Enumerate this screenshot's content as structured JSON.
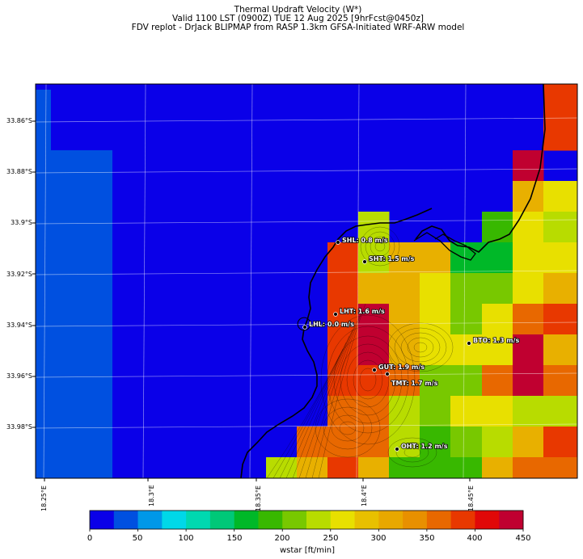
{
  "title": {
    "line1": "Thermal Updraft Velocity (W*)",
    "line2": "Valid 1100 LST (0900Z) TUE 12 Aug 2025 [9hrFcst@0450z]",
    "line3": "FDV replot - DrJack BLIPMAP from RASP 1.3km GFSA-Initiated WRF-ARW model"
  },
  "axes": {
    "lat_labels": [
      "33.86°S",
      "33.88°S",
      "33.9°S",
      "33.92°S",
      "33.94°S",
      "33.96°S",
      "33.98°S"
    ],
    "lon_labels": [
      "18.25°E",
      "18.3°E",
      "18.35°E",
      "18.4°E",
      "18.45°E"
    ]
  },
  "colorbar": {
    "title": "wstar [ft/min]",
    "ticks": [
      "0",
      "50",
      "100",
      "150",
      "200",
      "250",
      "300",
      "350",
      "400",
      "450"
    ],
    "colors": [
      "#0a00e8",
      "#0050e0",
      "#0098e8",
      "#00d8e8",
      "#00d8b0",
      "#00c878",
      "#00b828",
      "#38b800",
      "#78c800",
      "#b8dc00",
      "#e8e000",
      "#e8c000",
      "#e8a800",
      "#e89000",
      "#e86800",
      "#e83800",
      "#e00808",
      "#c00030"
    ]
  },
  "stations": [
    {
      "label": "SHL: 0.8 m/s"
    },
    {
      "label": "SHT: 1.5 m/s"
    },
    {
      "label": "LHT: 1.6 m/s"
    },
    {
      "label": "LHL: 0.0 m/s"
    },
    {
      "label": "BTO: 1.3 m/s"
    },
    {
      "label": "GUT: 1.9 m/s"
    },
    {
      "label": "TMT: 1.7 m/s"
    },
    {
      "label": "OHT: 1.2 m/s"
    }
  ],
  "grid_values": [
    [
      "blue",
      "blue",
      "blue",
      "blue",
      "blue",
      "blue",
      "blue",
      "blue",
      "blue",
      "blue",
      "blue",
      "blue",
      "blue",
      "blue",
      "blue",
      "blue",
      "blue",
      "red"
    ],
    [
      "lblue",
      "lblue",
      "blue",
      "blue",
      "blue",
      "blue",
      "blue",
      "blue",
      "blue",
      "blue",
      "blue",
      "blue",
      "blue",
      "blue",
      "blue",
      "blue",
      "blue",
      "red"
    ],
    [
      "lblue",
      "lblue",
      "blue",
      "blue",
      "blue",
      "blue",
      "blue",
      "blue",
      "blue",
      "blue",
      "blue",
      "blue",
      "blue",
      "blue",
      "blue",
      "blue",
      "crimson",
      "blue"
    ],
    [
      "lblue",
      "lblue",
      "blue",
      "blue",
      "blue",
      "blue",
      "blue",
      "blue",
      "blue",
      "blue",
      "blue",
      "blue",
      "blue",
      "blue",
      "blue",
      "blue",
      "gold",
      "yellow"
    ],
    [
      "lblue",
      "lblue",
      "blue",
      "blue",
      "blue",
      "blue",
      "blue",
      "blue",
      "blue",
      "blue",
      "blue",
      "lime",
      "blue",
      "blue",
      "blue",
      "green",
      "yellow",
      "lime"
    ],
    [
      "lblue",
      "lblue",
      "blue",
      "blue",
      "blue",
      "blue",
      "blue",
      "blue",
      "blue",
      "blue",
      "red",
      "lime",
      "gold",
      "gold",
      "dgreen",
      "dgreen",
      "yellow",
      "yellow"
    ],
    [
      "lblue",
      "lblue",
      "blue",
      "blue",
      "blue",
      "blue",
      "blue",
      "blue",
      "blue",
      "blue",
      "red",
      "gold",
      "gold",
      "yellow",
      "lgreen",
      "lgreen",
      "yellow",
      "gold"
    ],
    [
      "lblue",
      "lblue",
      "blue",
      "blue",
      "blue",
      "blue",
      "blue",
      "blue",
      "blue",
      "blue",
      "red",
      "crimson",
      "gold",
      "yellow",
      "lgreen",
      "yellow",
      "orange",
      "red"
    ],
    [
      "lblue",
      "lblue",
      "blue",
      "blue",
      "blue",
      "blue",
      "blue",
      "blue",
      "blue",
      "blue",
      "red",
      "crimson",
      "gold",
      "yellow",
      "yellow",
      "yellow",
      "crimson",
      "gold"
    ],
    [
      "lblue",
      "lblue",
      "blue",
      "blue",
      "blue",
      "blue",
      "blue",
      "blue",
      "blue",
      "blue",
      "red",
      "red",
      "orange",
      "lgreen",
      "lgreen",
      "orange",
      "crimson",
      "orange"
    ],
    [
      "lblue",
      "lblue",
      "blue",
      "blue",
      "blue",
      "blue",
      "blue",
      "blue",
      "blue",
      "blue",
      "orange",
      "orange",
      "lime",
      "lgreen",
      "yellow",
      "yellow",
      "lime",
      "lime"
    ],
    [
      "lblue",
      "lblue",
      "blue",
      "blue",
      "blue",
      "blue",
      "blue",
      "blue",
      "blue",
      "orange",
      "orange",
      "orange",
      "lime",
      "green",
      "lgreen",
      "lime",
      "gold",
      "red"
    ],
    [
      "lblue",
      "lblue",
      "blue",
      "blue",
      "blue",
      "blue",
      "blue",
      "blue",
      "lime",
      "gold",
      "red",
      "gold",
      "green",
      "green",
      "green",
      "gold",
      "orange",
      "orange"
    ]
  ]
}
